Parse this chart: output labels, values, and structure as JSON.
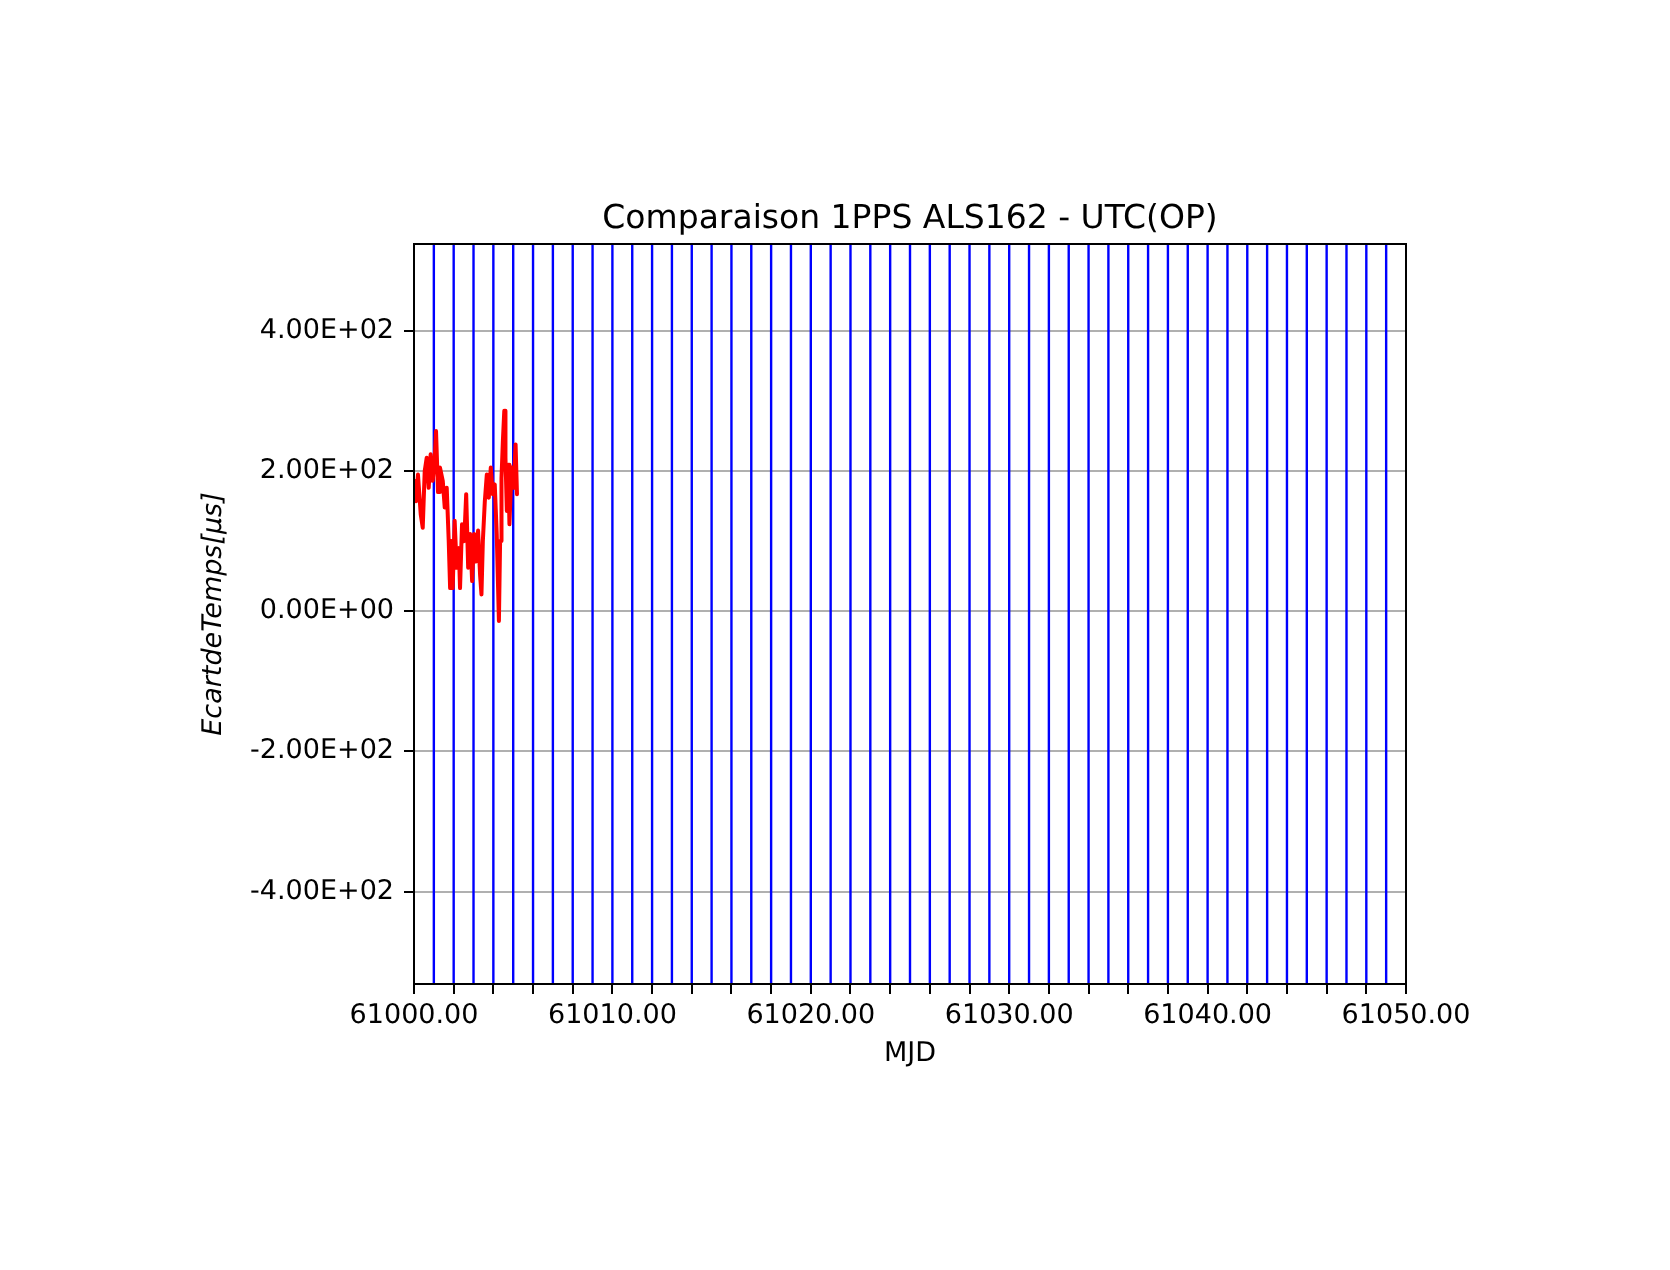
{
  "chart_data": {
    "type": "line",
    "title": "Comparaison 1PPS ALS162 - UTC(OP)",
    "xlabel": "MJD",
    "ylabel": "EcartdeTemps[μs]",
    "x": [
      61000.0,
      61000.1,
      61000.2,
      61000.34,
      61000.44,
      61000.54,
      61000.64,
      61000.74,
      61000.84,
      61000.94,
      61001.04,
      61001.11,
      61001.21,
      61001.31,
      61001.45,
      61001.55,
      61001.65,
      61001.75,
      61001.82,
      61001.89,
      61001.95,
      61002.05,
      61002.15,
      61002.26,
      61002.32,
      61002.42,
      61002.53,
      61002.63,
      61002.73,
      61002.83,
      61002.93,
      61003.03,
      61003.13,
      61003.23,
      61003.33,
      61003.4,
      61003.47,
      61003.57,
      61003.67,
      61003.77,
      61003.87,
      61003.97,
      61004.07,
      61004.17,
      61004.28,
      61004.34,
      61004.41,
      61004.48,
      61004.55,
      61004.61,
      61004.68,
      61004.75,
      61004.81,
      61004.92,
      61005.02,
      61005.12,
      61005.19
    ],
    "values": [
      186,
      157,
      195,
      138,
      119,
      200,
      219,
      176,
      224,
      186,
      214,
      257,
      170,
      205,
      186,
      148,
      176,
      100,
      33,
      100,
      33,
      129,
      62,
      90,
      33,
      124,
      100,
      167,
      62,
      110,
      43,
      110,
      71,
      115,
      52,
      24,
      100,
      157,
      195,
      162,
      205,
      167,
      181,
      110,
      -14,
      100,
      190,
      243,
      286,
      219,
      143,
      209,
      124,
      205,
      176,
      238,
      167
    ],
    "color": "#ff0000",
    "line_style": "solid",
    "xlim": [
      61000,
      61050
    ],
    "ylim": [
      -532,
      524
    ],
    "xticks": [
      {
        "value": 61000,
        "label": "61000.00"
      },
      {
        "value": 61002,
        "label": null
      },
      {
        "value": 61004,
        "label": null
      },
      {
        "value": 61006,
        "label": null
      },
      {
        "value": 61008,
        "label": null
      },
      {
        "value": 61010,
        "label": "61010.00"
      },
      {
        "value": 61012,
        "label": null
      },
      {
        "value": 61014,
        "label": null
      },
      {
        "value": 61016,
        "label": null
      },
      {
        "value": 61018,
        "label": null
      },
      {
        "value": 61020,
        "label": "61020.00"
      },
      {
        "value": 61022,
        "label": null
      },
      {
        "value": 61024,
        "label": null
      },
      {
        "value": 61026,
        "label": null
      },
      {
        "value": 61028,
        "label": null
      },
      {
        "value": 61030,
        "label": "61030.00"
      },
      {
        "value": 61032,
        "label": null
      },
      {
        "value": 61034,
        "label": null
      },
      {
        "value": 61036,
        "label": null
      },
      {
        "value": 61038,
        "label": null
      },
      {
        "value": 61040,
        "label": "61040.00"
      },
      {
        "value": 61042,
        "label": null
      },
      {
        "value": 61044,
        "label": null
      },
      {
        "value": 61046,
        "label": null
      },
      {
        "value": 61048,
        "label": null
      },
      {
        "value": 61050,
        "label": "61050.00"
      }
    ],
    "yticks": [
      {
        "value": -400,
        "label": "-4.00E+02"
      },
      {
        "value": -200,
        "label": "-2.00E+02"
      },
      {
        "value": 0,
        "label": "0.00E+00"
      },
      {
        "value": 200,
        "label": "2.00E+02"
      },
      {
        "value": 400,
        "label": "4.00E+02"
      }
    ],
    "grid": "y",
    "ref_lines": [
      {
        "axis": "x",
        "value": 61001,
        "color": "#0000ff"
      },
      {
        "axis": "x",
        "value": 61002,
        "color": "#0000ff"
      },
      {
        "axis": "x",
        "value": 61003,
        "color": "#0000ff"
      },
      {
        "axis": "x",
        "value": 61004,
        "color": "#0000ff"
      },
      {
        "axis": "x",
        "value": 61005,
        "color": "#0000ff"
      },
      {
        "axis": "x",
        "value": 61006,
        "color": "#0000ff"
      },
      {
        "axis": "x",
        "value": 61007,
        "color": "#0000ff"
      },
      {
        "axis": "x",
        "value": 61008,
        "color": "#0000ff"
      },
      {
        "axis": "x",
        "value": 61009,
        "color": "#0000ff"
      },
      {
        "axis": "x",
        "value": 61010,
        "color": "#0000ff"
      },
      {
        "axis": "x",
        "value": 61011,
        "color": "#0000ff"
      },
      {
        "axis": "x",
        "value": 61012,
        "color": "#0000ff"
      },
      {
        "axis": "x",
        "value": 61013,
        "color": "#0000ff"
      },
      {
        "axis": "x",
        "value": 61014,
        "color": "#0000ff"
      },
      {
        "axis": "x",
        "value": 61015,
        "color": "#0000ff"
      },
      {
        "axis": "x",
        "value": 61016,
        "color": "#0000ff"
      },
      {
        "axis": "x",
        "value": 61017,
        "color": "#0000ff"
      },
      {
        "axis": "x",
        "value": 61018,
        "color": "#0000ff"
      },
      {
        "axis": "x",
        "value": 61019,
        "color": "#0000ff"
      },
      {
        "axis": "x",
        "value": 61020,
        "color": "#0000ff"
      },
      {
        "axis": "x",
        "value": 61021,
        "color": "#0000ff"
      },
      {
        "axis": "x",
        "value": 61022,
        "color": "#0000ff"
      },
      {
        "axis": "x",
        "value": 61023,
        "color": "#0000ff"
      },
      {
        "axis": "x",
        "value": 61024,
        "color": "#0000ff"
      },
      {
        "axis": "x",
        "value": 61025,
        "color": "#0000ff"
      },
      {
        "axis": "x",
        "value": 61026,
        "color": "#0000ff"
      },
      {
        "axis": "x",
        "value": 61027,
        "color": "#0000ff"
      },
      {
        "axis": "x",
        "value": 61028,
        "color": "#0000ff"
      },
      {
        "axis": "x",
        "value": 61029,
        "color": "#0000ff"
      },
      {
        "axis": "x",
        "value": 61030,
        "color": "#0000ff"
      },
      {
        "axis": "x",
        "value": 61031,
        "color": "#0000ff"
      },
      {
        "axis": "x",
        "value": 61032,
        "color": "#0000ff"
      },
      {
        "axis": "x",
        "value": 61033,
        "color": "#0000ff"
      },
      {
        "axis": "x",
        "value": 61034,
        "color": "#0000ff"
      },
      {
        "axis": "x",
        "value": 61035,
        "color": "#0000ff"
      },
      {
        "axis": "x",
        "value": 61036,
        "color": "#0000ff"
      },
      {
        "axis": "x",
        "value": 61037,
        "color": "#0000ff"
      },
      {
        "axis": "x",
        "value": 61038,
        "color": "#0000ff"
      },
      {
        "axis": "x",
        "value": 61039,
        "color": "#0000ff"
      },
      {
        "axis": "x",
        "value": 61040,
        "color": "#0000ff"
      },
      {
        "axis": "x",
        "value": 61041,
        "color": "#0000ff"
      },
      {
        "axis": "x",
        "value": 61042,
        "color": "#0000ff"
      },
      {
        "axis": "x",
        "value": 61043,
        "color": "#0000ff"
      },
      {
        "axis": "x",
        "value": 61044,
        "color": "#0000ff"
      },
      {
        "axis": "x",
        "value": 61045,
        "color": "#0000ff"
      },
      {
        "axis": "x",
        "value": 61046,
        "color": "#0000ff"
      },
      {
        "axis": "x",
        "value": 61047,
        "color": "#0000ff"
      },
      {
        "axis": "x",
        "value": 61048,
        "color": "#0000ff"
      },
      {
        "axis": "x",
        "value": 61049,
        "color": "#0000ff"
      }
    ]
  }
}
